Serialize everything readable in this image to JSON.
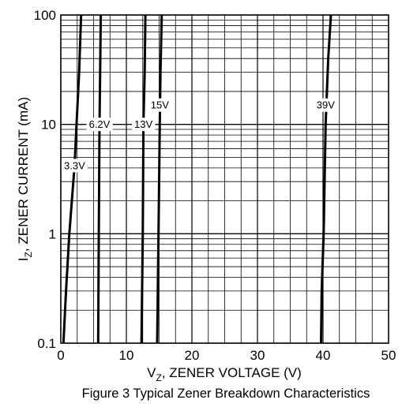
{
  "chart_data": {
    "type": "line",
    "title": "Figure 3  Typical Zener Breakdown Characteristics",
    "xlabel": {
      "symbol": "V",
      "sub": "Z",
      "text": ", ZENER VOLTAGE (V)"
    },
    "ylabel": {
      "symbol": "I",
      "sub": "Z",
      "text": ", ZENER CURRENT (mA)"
    },
    "xlim": [
      0,
      50
    ],
    "ylim": [
      0.1,
      100
    ],
    "yscale": "log",
    "grid": true,
    "x_ticks": [
      {
        "value": 0,
        "label": "0"
      },
      {
        "value": 10,
        "label": "10"
      },
      {
        "value": 20,
        "label": "20"
      },
      {
        "value": 30,
        "label": "30"
      },
      {
        "value": 40,
        "label": "40"
      },
      {
        "value": 50,
        "label": "50"
      }
    ],
    "y_ticks": [
      {
        "value": 0.1,
        "label": "0.1"
      },
      {
        "value": 1,
        "label": "1"
      },
      {
        "value": 10,
        "label": "10"
      },
      {
        "value": 100,
        "label": "100"
      }
    ],
    "series": [
      {
        "name": "3.3V",
        "label_at": [
          2.1,
          4.2
        ],
        "points": [
          [
            0.4,
            0.1
          ],
          [
            0.8,
            0.3
          ],
          [
            1.3,
            1
          ],
          [
            2.1,
            4.2
          ],
          [
            2.4,
            10
          ],
          [
            2.8,
            30
          ],
          [
            3.1,
            100
          ]
        ]
      },
      {
        "name": "6.2V",
        "label_at": [
          5.9,
          10
        ],
        "points": [
          [
            5.7,
            0.1
          ],
          [
            5.8,
            1
          ],
          [
            5.9,
            10
          ],
          [
            6.0,
            30
          ],
          [
            6.1,
            100
          ]
        ]
      },
      {
        "name": "13V",
        "label_at": [
          12.6,
          10
        ],
        "points": [
          [
            12.3,
            0.1
          ],
          [
            12.5,
            1
          ],
          [
            12.6,
            10
          ],
          [
            12.8,
            30
          ],
          [
            12.9,
            100
          ]
        ]
      },
      {
        "name": "15V",
        "label_at": [
          15.1,
          15
        ],
        "points": [
          [
            14.7,
            0.1
          ],
          [
            14.9,
            1
          ],
          [
            15.1,
            10
          ],
          [
            15.2,
            30
          ],
          [
            15.4,
            100
          ]
        ]
      },
      {
        "name": "39V",
        "label_at": [
          40.4,
          15
        ],
        "points": [
          [
            39.7,
            0.1
          ],
          [
            39.8,
            0.3
          ],
          [
            40.1,
            1
          ],
          [
            40.4,
            10
          ],
          [
            40.8,
            40
          ],
          [
            41.2,
            100
          ]
        ]
      }
    ]
  }
}
